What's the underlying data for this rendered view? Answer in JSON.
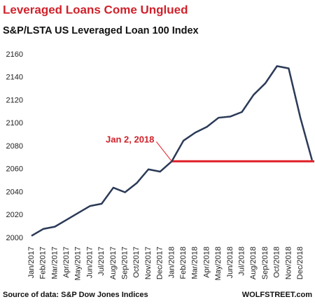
{
  "chart_data": {
    "type": "line",
    "title": "Leveraged Loans Come Unglued",
    "subtitle": "S&P/LSTA US Leveraged Loan 100 Index",
    "source": "Source of data: S&P Dow Jones Indices",
    "credit": "WOLFSTREET.com",
    "categories": [
      "Jan/2017",
      "Feb/2017",
      "Mar/2017",
      "Apr/2017",
      "May/2017",
      "Jun/2017",
      "Jul/2017",
      "Aug/2017",
      "Sep/2017",
      "Oct/2017",
      "Nov/2017",
      "Dec/2017",
      "Jan/2018",
      "Feb/2018",
      "Mar/2018",
      "Apr/2018",
      "May/2018",
      "Jun/2018",
      "Jul/2018",
      "Aug/2018",
      "Sep/2018",
      "Oct/2018",
      "Nov/2018",
      "Dec/2018",
      null
    ],
    "series": [
      {
        "name": "S&P/LSTA US Leveraged Loan 100 Index",
        "color": "#2b3a57",
        "values": [
          2002,
          2008,
          2010,
          2016,
          2022,
          2028,
          2030,
          2044,
          2040,
          2048,
          2060,
          2058,
          2067,
          2085,
          2092,
          2097,
          2105,
          2106,
          2110,
          2125,
          2135,
          2150,
          2148,
          2105,
          2068
        ]
      }
    ],
    "reference_line": {
      "label": "Jan 2, 2018",
      "value": 2067,
      "start": "Jan/2018",
      "color": "#e01e26"
    },
    "ylim": [
      2000,
      2160
    ],
    "yticks": [
      2000,
      2020,
      2040,
      2060,
      2080,
      2100,
      2120,
      2140,
      2160
    ],
    "grid": false
  }
}
